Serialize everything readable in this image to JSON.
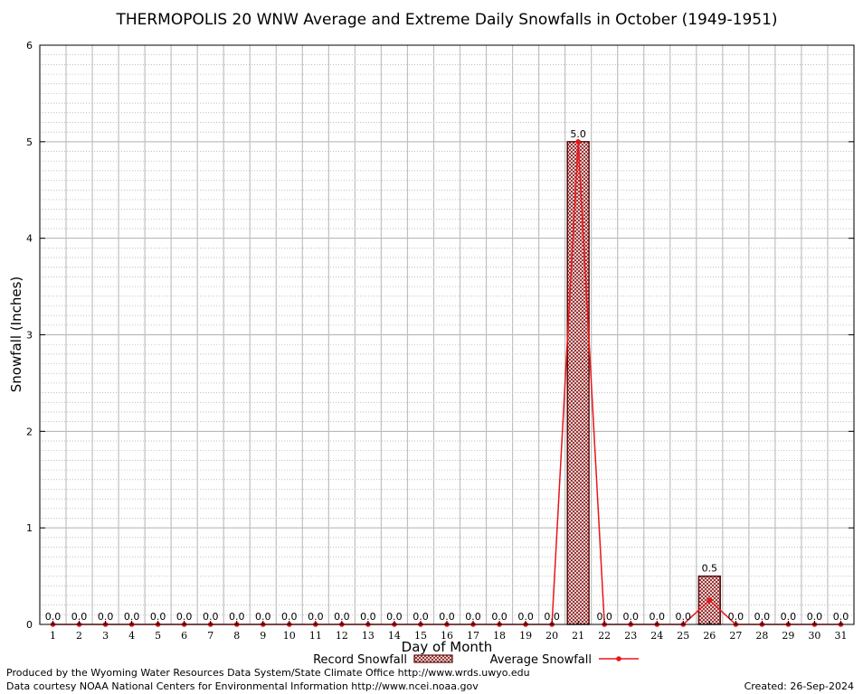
{
  "chart_data": {
    "type": "bar",
    "title": "THERMOPOLIS 20 WNW Average and Extreme Daily Snowfalls in October (1949-1951)",
    "xlabel": "Day of Month",
    "ylabel": "Snowfall (Inches)",
    "ylim": [
      0,
      6
    ],
    "yticks": [
      0,
      1,
      2,
      3,
      4,
      5,
      6
    ],
    "categories": [
      "1",
      "2",
      "3",
      "4",
      "5",
      "6",
      "7",
      "8",
      "9",
      "10",
      "11",
      "12",
      "13",
      "14",
      "15",
      "16",
      "17",
      "18",
      "19",
      "20",
      "21",
      "22",
      "23",
      "24",
      "25",
      "26",
      "27",
      "28",
      "29",
      "30",
      "31"
    ],
    "series": [
      {
        "name": "Record Snowfall",
        "kind": "bar",
        "color": "#8b1a1a",
        "values": [
          0,
          0,
          0,
          0,
          0,
          0,
          0,
          0,
          0,
          0,
          0,
          0,
          0,
          0,
          0,
          0,
          0,
          0,
          0,
          0,
          5.0,
          0,
          0,
          0,
          0,
          0.5,
          0,
          0,
          0,
          0,
          0
        ],
        "labels": [
          "0.0",
          "0.0",
          "0.0",
          "0.0",
          "0.0",
          "0.0",
          "0.0",
          "0.0",
          "0.0",
          "0.0",
          "0.0",
          "0.0",
          "0.0",
          "0.0",
          "0.0",
          "0.0",
          "0.0",
          "0.0",
          "0.0",
          "0.0",
          "5.0",
          "0.0",
          "0.0",
          "0.0",
          "0.0",
          "0.5",
          "0.0",
          "0.0",
          "0.0",
          "0.0",
          "0.0"
        ]
      },
      {
        "name": "Average Snowfall",
        "kind": "line",
        "color": "#e8161b",
        "values": [
          0,
          0,
          0,
          0,
          0,
          0,
          0,
          0,
          0,
          0,
          0,
          0,
          0,
          0,
          0,
          0,
          0,
          0,
          0,
          0,
          5.0,
          0,
          0,
          0,
          0,
          0.25,
          0,
          0,
          0,
          0,
          0
        ]
      }
    ],
    "grid": true,
    "legend": "bottom-center"
  },
  "footer": {
    "produced_by": "Produced by the Wyoming Water Resources Data System/State Climate Office http://www.wrds.uwyo.edu",
    "data_courtesy": "Data courtesy NOAA National Centers for Environmental Information http://www.ncei.noaa.gov",
    "created": "Created: 26-Sep-2024"
  }
}
